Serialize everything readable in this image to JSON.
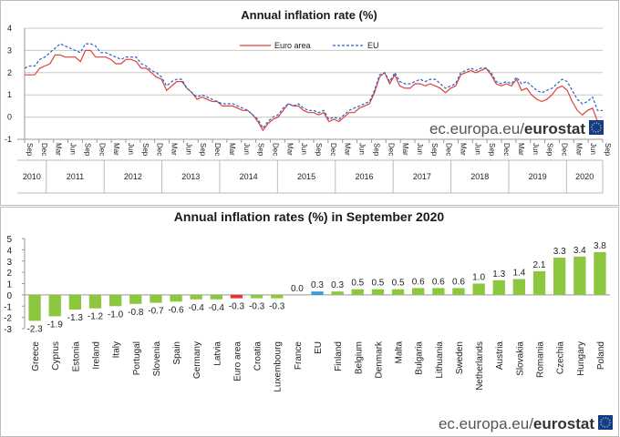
{
  "chart_data": [
    {
      "type": "line",
      "title": "Annual  inflation rate (%)",
      "ylim": [
        -1,
        4
      ],
      "yticks": [
        -1,
        0,
        1,
        2,
        3,
        4
      ],
      "legend": {
        "placement": "top-center",
        "entries": [
          "Euro area",
          "EU"
        ]
      },
      "month_labels": [
        "Sep",
        "Dec",
        "Mar",
        "Jun",
        "Sep",
        "Dec",
        "Mar",
        "Jun",
        "Sep",
        "Dec",
        "Mar",
        "Jun",
        "Sep",
        "Dec",
        "Mar",
        "Jun",
        "Sep",
        "Dec",
        "Mar",
        "Jun",
        "Sep",
        "Dec",
        "Mar",
        "Jun",
        "Sep",
        "Dec",
        "Mar",
        "Jun",
        "Sep",
        "Dec",
        "Mar",
        "Jun",
        "Sep",
        "Dec",
        "Mar",
        "Jun",
        "Sep",
        "Dec",
        "Mar",
        "Jun",
        "Sep"
      ],
      "years": [
        "2010",
        "2011",
        "2012",
        "2013",
        "2014",
        "2015",
        "2016",
        "2017",
        "2018",
        "2019",
        "2020"
      ],
      "x_start": "2010-09",
      "series": [
        {
          "name": "Euro area",
          "color": "#e0403a",
          "values": [
            1.9,
            1.9,
            1.9,
            2.2,
            2.3,
            2.4,
            2.8,
            2.8,
            2.7,
            2.7,
            2.7,
            2.5,
            3.0,
            3.0,
            2.7,
            2.7,
            2.7,
            2.6,
            2.4,
            2.4,
            2.6,
            2.6,
            2.5,
            2.2,
            2.2,
            2.0,
            1.8,
            1.7,
            1.2,
            1.4,
            1.6,
            1.6,
            1.3,
            1.1,
            0.8,
            0.9,
            0.8,
            0.7,
            0.7,
            0.5,
            0.5,
            0.5,
            0.4,
            0.3,
            0.3,
            0.1,
            -0.2,
            -0.6,
            -0.3,
            -0.1,
            0.0,
            0.3,
            0.6,
            0.5,
            0.5,
            0.3,
            0.2,
            0.2,
            0.1,
            0.2,
            -0.2,
            -0.1,
            -0.2,
            0.0,
            0.2,
            0.2,
            0.4,
            0.5,
            0.6,
            1.1,
            1.8,
            2.0,
            1.5,
            1.9,
            1.4,
            1.3,
            1.3,
            1.5,
            1.5,
            1.4,
            1.5,
            1.4,
            1.3,
            1.1,
            1.3,
            1.4,
            1.9,
            2.0,
            2.1,
            2.0,
            2.1,
            2.2,
            1.9,
            1.5,
            1.4,
            1.5,
            1.4,
            1.7,
            1.2,
            1.3,
            1.0,
            0.8,
            0.7,
            0.8,
            1.0,
            1.3,
            1.4,
            1.2,
            0.7,
            0.3,
            0.1,
            0.3,
            0.4,
            -0.2,
            -0.3
          ]
        },
        {
          "name": "EU",
          "color": "#2a62c8",
          "values": [
            2.2,
            2.3,
            2.3,
            2.6,
            2.7,
            2.9,
            3.1,
            3.3,
            3.2,
            3.1,
            3.0,
            2.9,
            3.3,
            3.3,
            3.2,
            2.9,
            2.9,
            2.8,
            2.7,
            2.6,
            2.7,
            2.7,
            2.7,
            2.4,
            2.3,
            2.1,
            2.0,
            1.8,
            1.4,
            1.6,
            1.7,
            1.7,
            1.3,
            1.1,
            0.9,
            1.0,
            0.9,
            0.8,
            0.7,
            0.6,
            0.6,
            0.6,
            0.5,
            0.4,
            0.3,
            0.1,
            -0.1,
            -0.5,
            -0.2,
            0.0,
            0.1,
            0.4,
            0.6,
            0.5,
            0.6,
            0.4,
            0.3,
            0.3,
            0.2,
            0.3,
            -0.1,
            0.0,
            -0.1,
            0.1,
            0.3,
            0.4,
            0.5,
            0.6,
            0.7,
            1.2,
            1.9,
            2.0,
            1.6,
            2.0,
            1.6,
            1.5,
            1.5,
            1.6,
            1.7,
            1.6,
            1.7,
            1.7,
            1.5,
            1.3,
            1.4,
            1.5,
            2.0,
            2.1,
            2.2,
            2.1,
            2.2,
            2.2,
            2.0,
            1.6,
            1.5,
            1.6,
            1.5,
            1.8,
            1.5,
            1.6,
            1.4,
            1.2,
            1.1,
            1.2,
            1.3,
            1.5,
            1.7,
            1.6,
            1.2,
            0.8,
            0.6,
            0.7,
            0.9,
            0.3,
            0.3
          ]
        }
      ]
    },
    {
      "type": "bar",
      "title": "Annual inflation rates (%) in September 2020",
      "ylim": [
        -3,
        5
      ],
      "yticks": [
        -3,
        -2,
        -1,
        0,
        1,
        2,
        3,
        4,
        5
      ],
      "categories": [
        "Greece",
        "Cyprus",
        "Estonia",
        "Ireland",
        "Italy",
        "Portugal",
        "Slovenia",
        "Spain",
        "Germany",
        "Latvia",
        "Euro area",
        "Croatia",
        "Luxembourg",
        "France",
        "EU",
        "Finland",
        "Belgium",
        "Denmark",
        "Malta",
        "Bulgaria",
        "Lithuania",
        "Sweden",
        "Netherlands",
        "Austria",
        "Slovakia",
        "Romania",
        "Czechia",
        "Hungary",
        "Poland"
      ],
      "values": [
        -2.3,
        -1.9,
        -1.3,
        -1.2,
        -1.0,
        -0.8,
        -0.7,
        -0.6,
        -0.4,
        -0.4,
        -0.3,
        -0.3,
        -0.3,
        0.0,
        0.3,
        0.3,
        0.5,
        0.5,
        0.5,
        0.6,
        0.6,
        0.6,
        1.0,
        1.3,
        1.4,
        2.1,
        3.3,
        3.4,
        3.8
      ],
      "value_labels": [
        "-2.3",
        "-1.9",
        "-1.3",
        "-1.2",
        "-1.0",
        "-0.8",
        "-0.7",
        "-0.6",
        "-0.4",
        "-0.4",
        "-0.3",
        "-0.3",
        "-0.3",
        "0.0",
        "0.3",
        "0.3",
        "0.5",
        "0.5",
        "0.5",
        "0.6",
        "0.6",
        "0.6",
        "1.0",
        "1.3",
        "1.4",
        "2.1",
        "3.3",
        "3.4",
        "3.8"
      ],
      "colors": {
        "default": "#8dc63f",
        "Euro area": "#e8322c",
        "EU": "#3a9ad9"
      }
    }
  ],
  "branding": {
    "line_chart": {
      "text": "ec.europa.eu/",
      "bold": "eurostat"
    },
    "bar_chart": {
      "text": "ec.europa.eu/",
      "bold": "eurostat"
    }
  }
}
